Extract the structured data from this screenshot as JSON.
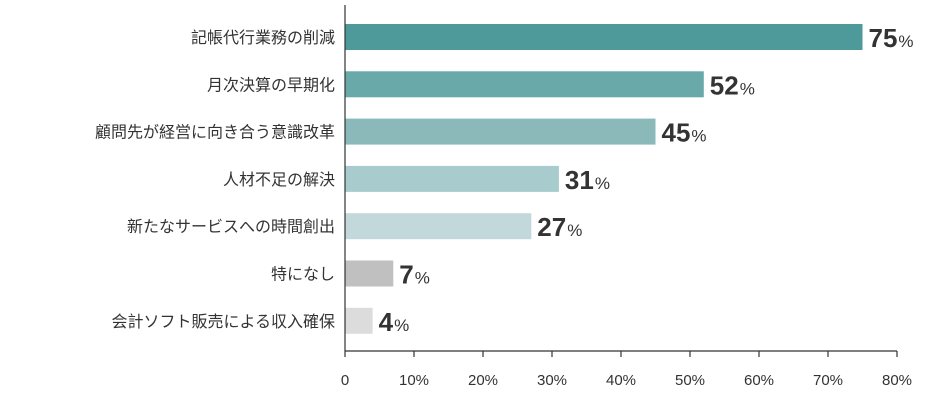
{
  "chart_data": {
    "type": "bar",
    "orientation": "horizontal",
    "title": "",
    "xlabel": "",
    "ylabel": "",
    "xlim": [
      0,
      80
    ],
    "tick_values": [
      0,
      10,
      20,
      30,
      40,
      50,
      60,
      70,
      80
    ],
    "tick_labels": [
      "0",
      "10%",
      "20%",
      "30%",
      "40%",
      "50%",
      "60%",
      "70%",
      "80%"
    ],
    "value_suffix": "%",
    "grid": false,
    "legend": "none",
    "categories": [
      "記帳代行業務の削減",
      "月次決算の早期化",
      "顧問先が経営に向き合う意識改革",
      "人材不足の解決",
      "新たなサービスへの時間創出",
      "特になし",
      "会計ソフト販売による収入確保"
    ],
    "values": [
      75,
      52,
      45,
      31,
      27,
      7,
      4
    ],
    "colors": [
      "#4e9a9b",
      "#6aa9aa",
      "#8bb9ba",
      "#a8cccd",
      "#c3d8da",
      "#c0c0c0",
      "#dcdcdc"
    ]
  }
}
